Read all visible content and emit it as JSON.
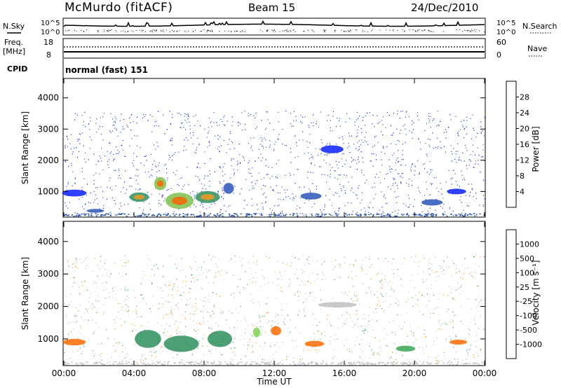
{
  "header": {
    "station": "McMurdo (fitACF)",
    "beam": "Beam 15",
    "date": "24/Dec/2010"
  },
  "status_panel": {
    "nsky_label": "N.Sky",
    "nsky_ticks": [
      "10^5",
      "10^0"
    ],
    "nsearch_label": "N.Search",
    "nsearch_ticks": [
      "10^5",
      "10^0"
    ],
    "freq_label_1": "Freq.",
    "freq_label_2": "[MHz]",
    "freq_ticks": [
      "18",
      "8"
    ],
    "nave_label": "Nave",
    "nave_ticks": [
      "60",
      "0"
    ],
    "cpid_label": "CPID",
    "cpid_value": "normal (fast) 151"
  },
  "chart_data": [
    {
      "type": "heatmap",
      "name": "power",
      "ylabel": "Slant Range [km]",
      "ylim": [
        200,
        4600
      ],
      "yticks": [
        "4000",
        "3000",
        "2000",
        "1000"
      ],
      "colorbar_label": "Power [dB]",
      "colorbar_ticks": [
        "28",
        "24",
        "20",
        "16",
        "12",
        "8",
        "4"
      ],
      "colorbar_colors": [
        "#0a1eff",
        "#2a55b8",
        "#2d8f5a",
        "#7fc24a",
        "#f0d000",
        "#ff9a1a",
        "#ff6000",
        "#ff2000"
      ],
      "blobs": [
        {
          "t": 0.6,
          "r": 950,
          "w": 1.4,
          "h": 220,
          "c": 0
        },
        {
          "t": 1.8,
          "r": 380,
          "w": 1.0,
          "h": 120,
          "c": 1
        },
        {
          "t": 4.3,
          "r": 820,
          "w": 1.1,
          "h": 300,
          "c": 2
        },
        {
          "t": 5.5,
          "r": 1250,
          "w": 0.7,
          "h": 420,
          "c": 3
        },
        {
          "t": 6.6,
          "r": 700,
          "w": 1.6,
          "h": 520,
          "c": 3
        },
        {
          "t": 8.2,
          "r": 820,
          "w": 1.4,
          "h": 380,
          "c": 2
        },
        {
          "t": 9.4,
          "r": 1100,
          "w": 0.6,
          "h": 350,
          "c": 1
        },
        {
          "t": 14.1,
          "r": 850,
          "w": 1.2,
          "h": 220,
          "c": 1
        },
        {
          "t": 15.3,
          "r": 2350,
          "w": 1.3,
          "h": 250,
          "c": 0
        },
        {
          "t": 21.0,
          "r": 650,
          "w": 1.2,
          "h": 200,
          "c": 1
        },
        {
          "t": 22.4,
          "r": 1000,
          "w": 1.1,
          "h": 180,
          "c": 0
        }
      ]
    },
    {
      "type": "heatmap",
      "name": "velocity",
      "ylabel": "Slant Range [km]",
      "xlabel": "Time UT",
      "ylim": [
        200,
        4600
      ],
      "yticks": [
        "4000",
        "3000",
        "2000",
        "1000"
      ],
      "xticks": [
        "00:00",
        "04:00",
        "08:00",
        "12:00",
        "16:00",
        "20:00",
        "00:00"
      ],
      "colorbar_label": "Velocity [m s⁻¹]",
      "colorbar_ticks": [
        "1000",
        "500",
        "100",
        "25",
        "-25",
        "-100",
        "-500",
        "-1000"
      ],
      "colorbar_colors": [
        "#2a5cb8",
        "#2d8f5a",
        "#3aa655",
        "#7fd24a",
        "#c0c0c0",
        "#ff9a1a",
        "#ff6a00",
        "#ff3a00",
        "#ff0000"
      ],
      "blobs": [
        {
          "t": 0.6,
          "r": 900,
          "w": 1.3,
          "h": 200,
          "c": 6
        },
        {
          "t": 4.8,
          "r": 1000,
          "w": 1.5,
          "h": 550,
          "c": 1
        },
        {
          "t": 6.7,
          "r": 850,
          "w": 2.0,
          "h": 500,
          "c": 1
        },
        {
          "t": 8.9,
          "r": 1000,
          "w": 1.4,
          "h": 500,
          "c": 1
        },
        {
          "t": 11.0,
          "r": 1200,
          "w": 0.4,
          "h": 300,
          "c": 3
        },
        {
          "t": 12.1,
          "r": 1250,
          "w": 0.6,
          "h": 280,
          "c": 6
        },
        {
          "t": 14.3,
          "r": 850,
          "w": 1.1,
          "h": 180,
          "c": 6
        },
        {
          "t": 15.6,
          "r": 2050,
          "w": 2.2,
          "h": 170,
          "c": 4
        },
        {
          "t": 19.5,
          "r": 700,
          "w": 1.1,
          "h": 180,
          "c": 2
        },
        {
          "t": 22.5,
          "r": 900,
          "w": 1.0,
          "h": 150,
          "c": 6
        }
      ]
    }
  ]
}
